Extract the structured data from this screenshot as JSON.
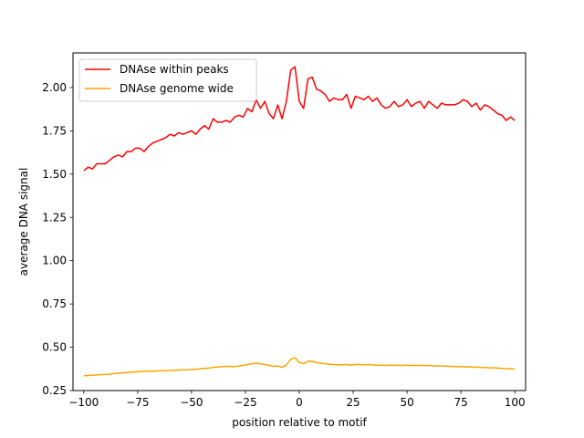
{
  "chart_data": {
    "type": "line",
    "title": "",
    "xlabel": "position relative to motif",
    "ylabel": "average DNA signal",
    "xlim": [
      -105,
      105
    ],
    "ylim": [
      0.25,
      2.2
    ],
    "xticks": [
      -100,
      -75,
      -50,
      -25,
      0,
      25,
      50,
      75,
      100
    ],
    "xtick_labels": [
      "−100",
      "−75",
      "−50",
      "−25",
      "0",
      "25",
      "50",
      "75",
      "100"
    ],
    "yticks": [
      0.25,
      0.5,
      0.75,
      1.0,
      1.25,
      1.5,
      1.75,
      2.0
    ],
    "ytick_labels": [
      "0.25",
      "0.50",
      "0.75",
      "1.00",
      "1.25",
      "1.50",
      "1.75",
      "2.00"
    ],
    "grid": false,
    "legend_position": "top-left",
    "series": [
      {
        "name": "DNAse within peaks",
        "color": "#ff0000",
        "x": [
          -100,
          -98,
          -96,
          -94,
          -92,
          -90,
          -88,
          -86,
          -84,
          -82,
          -80,
          -78,
          -76,
          -74,
          -72,
          -70,
          -68,
          -66,
          -64,
          -62,
          -60,
          -58,
          -56,
          -54,
          -52,
          -50,
          -48,
          -46,
          -44,
          -42,
          -40,
          -38,
          -36,
          -34,
          -32,
          -30,
          -28,
          -26,
          -24,
          -22,
          -20,
          -18,
          -16,
          -14,
          -12,
          -10,
          -8,
          -6,
          -4,
          -2,
          0,
          2,
          4,
          6,
          8,
          10,
          12,
          14,
          16,
          18,
          20,
          22,
          24,
          26,
          28,
          30,
          32,
          34,
          36,
          38,
          40,
          42,
          44,
          46,
          48,
          50,
          52,
          54,
          56,
          58,
          60,
          62,
          64,
          66,
          68,
          70,
          72,
          74,
          76,
          78,
          80,
          82,
          84,
          86,
          88,
          90,
          92,
          94,
          96,
          98,
          100
        ],
        "y": [
          1.52,
          1.54,
          1.53,
          1.56,
          1.56,
          1.56,
          1.58,
          1.6,
          1.61,
          1.6,
          1.63,
          1.63,
          1.65,
          1.65,
          1.63,
          1.66,
          1.68,
          1.69,
          1.7,
          1.71,
          1.73,
          1.72,
          1.74,
          1.73,
          1.74,
          1.75,
          1.73,
          1.76,
          1.78,
          1.76,
          1.82,
          1.8,
          1.8,
          1.81,
          1.8,
          1.83,
          1.84,
          1.83,
          1.88,
          1.86,
          1.93,
          1.88,
          1.92,
          1.85,
          1.82,
          1.9,
          1.82,
          1.92,
          2.1,
          2.12,
          1.92,
          1.88,
          2.05,
          2.06,
          1.99,
          1.98,
          1.96,
          1.92,
          1.94,
          1.93,
          1.93,
          1.96,
          1.88,
          1.95,
          1.94,
          1.93,
          1.95,
          1.92,
          1.94,
          1.9,
          1.88,
          1.89,
          1.92,
          1.89,
          1.9,
          1.93,
          1.89,
          1.91,
          1.92,
          1.88,
          1.92,
          1.9,
          1.88,
          1.91,
          1.9,
          1.9,
          1.9,
          1.91,
          1.93,
          1.92,
          1.89,
          1.91,
          1.87,
          1.9,
          1.89,
          1.87,
          1.85,
          1.84,
          1.81,
          1.83,
          1.81
        ]
      },
      {
        "name": "DNAse genome wide",
        "color": "#ffa500",
        "x": [
          -100,
          -98,
          -96,
          -94,
          -92,
          -90,
          -88,
          -86,
          -84,
          -82,
          -80,
          -78,
          -76,
          -74,
          -72,
          -70,
          -68,
          -66,
          -64,
          -62,
          -60,
          -58,
          -56,
          -54,
          -52,
          -50,
          -48,
          -46,
          -44,
          -42,
          -40,
          -38,
          -36,
          -34,
          -32,
          -30,
          -28,
          -26,
          -24,
          -22,
          -20,
          -18,
          -16,
          -14,
          -12,
          -10,
          -8,
          -6,
          -4,
          -2,
          0,
          2,
          4,
          6,
          8,
          10,
          12,
          14,
          16,
          18,
          20,
          22,
          24,
          26,
          28,
          30,
          32,
          34,
          36,
          38,
          40,
          42,
          44,
          46,
          48,
          50,
          52,
          54,
          56,
          58,
          60,
          62,
          64,
          66,
          68,
          70,
          72,
          74,
          76,
          78,
          80,
          82,
          84,
          86,
          88,
          90,
          92,
          94,
          96,
          98,
          100
        ],
        "y": [
          0.335,
          0.337,
          0.338,
          0.34,
          0.342,
          0.343,
          0.345,
          0.348,
          0.35,
          0.352,
          0.354,
          0.356,
          0.358,
          0.36,
          0.361,
          0.362,
          0.362,
          0.363,
          0.364,
          0.365,
          0.366,
          0.367,
          0.368,
          0.369,
          0.37,
          0.372,
          0.373,
          0.376,
          0.378,
          0.38,
          0.384,
          0.386,
          0.388,
          0.389,
          0.39,
          0.388,
          0.392,
          0.395,
          0.4,
          0.405,
          0.408,
          0.404,
          0.4,
          0.395,
          0.39,
          0.392,
          0.384,
          0.398,
          0.43,
          0.44,
          0.412,
          0.405,
          0.42,
          0.418,
          0.412,
          0.408,
          0.405,
          0.402,
          0.4,
          0.399,
          0.398,
          0.4,
          0.397,
          0.401,
          0.4,
          0.398,
          0.4,
          0.398,
          0.397,
          0.396,
          0.395,
          0.396,
          0.396,
          0.395,
          0.395,
          0.396,
          0.395,
          0.395,
          0.395,
          0.394,
          0.394,
          0.393,
          0.392,
          0.392,
          0.391,
          0.39,
          0.389,
          0.388,
          0.388,
          0.387,
          0.386,
          0.385,
          0.384,
          0.383,
          0.382,
          0.381,
          0.38,
          0.378,
          0.377,
          0.376,
          0.375
        ]
      }
    ]
  }
}
